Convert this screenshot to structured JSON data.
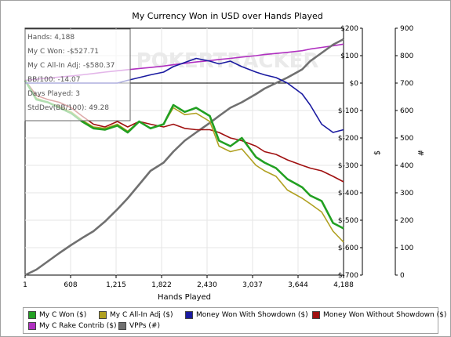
{
  "chart_data": {
    "type": "line",
    "title": "My Currency Won in USD over Hands Played",
    "xlabel": "Hands Played",
    "ylabel_left": "$",
    "ylabel_right": "#",
    "xlim": [
      1,
      4188
    ],
    "ylim_left": [
      -700,
      200
    ],
    "ylim_right": [
      0,
      900
    ],
    "x_ticks": [
      "1",
      "608",
      "1,215",
      "1,822",
      "2,430",
      "3,037",
      "3,644",
      "4,188"
    ],
    "y_ticks_left": [
      "$200",
      "$100",
      "$0",
      "$-100",
      "$-200",
      "$-300",
      "$-400",
      "$-500",
      "$-600",
      "$-700"
    ],
    "y_ticks_right": [
      "900",
      "800",
      "700",
      "600",
      "500",
      "400",
      "300",
      "200",
      "100",
      "0"
    ],
    "grid": true,
    "legend_position": "bottom",
    "x": [
      1,
      150,
      300,
      450,
      608,
      750,
      900,
      1050,
      1215,
      1350,
      1500,
      1650,
      1822,
      1950,
      2100,
      2250,
      2430,
      2550,
      2700,
      2850,
      3037,
      3150,
      3300,
      3450,
      3644,
      3750,
      3900,
      4050,
      4188
    ],
    "series": [
      {
        "name": "My C Won ($)",
        "color": "#22a022",
        "axis": "left",
        "values": [
          10,
          -60,
          -70,
          -90,
          -110,
          -140,
          -165,
          -170,
          -155,
          -180,
          -140,
          -165,
          -150,
          -80,
          -105,
          -90,
          -120,
          -210,
          -230,
          -200,
          -270,
          -290,
          -310,
          -350,
          -380,
          -410,
          -430,
          -510,
          -530
        ]
      },
      {
        "name": "My C All-In Adj ($)",
        "color": "#b0a020",
        "axis": "left",
        "values": [
          10,
          -55,
          -70,
          -85,
          -105,
          -135,
          -160,
          -165,
          -150,
          -175,
          -140,
          -165,
          -150,
          -90,
          -115,
          -110,
          -140,
          -230,
          -250,
          -240,
          -300,
          -320,
          -340,
          -390,
          -420,
          -440,
          -470,
          -540,
          -580
        ]
      },
      {
        "name": "Money Won With Showdown ($)",
        "color": "#1a1aa0",
        "axis": "left",
        "values": [
          0,
          0,
          0,
          0,
          0,
          0,
          0,
          0,
          0,
          10,
          20,
          30,
          40,
          60,
          75,
          90,
          80,
          70,
          80,
          60,
          40,
          30,
          20,
          0,
          -40,
          -80,
          -150,
          -180,
          -170
        ]
      },
      {
        "name": "Money Won Without Showdown ($)",
        "color": "#a01010",
        "axis": "left",
        "values": [
          10,
          -45,
          -60,
          -70,
          -90,
          -120,
          -150,
          -160,
          -140,
          -160,
          -140,
          -150,
          -160,
          -150,
          -165,
          -170,
          -170,
          -180,
          -200,
          -210,
          -230,
          -250,
          -260,
          -280,
          -300,
          -310,
          -320,
          -340,
          -360
        ]
      },
      {
        "name": "My C Rake Contrib ($)",
        "color": "#b030c0",
        "axis": "left",
        "values": [
          10,
          14,
          18,
          22,
          26,
          30,
          35,
          40,
          45,
          49,
          53,
          57,
          62,
          67,
          72,
          77,
          82,
          86,
          90,
          95,
          100,
          104,
          108,
          112,
          118,
          124,
          130,
          136,
          142
        ]
      },
      {
        "name": "VPPs (#)",
        "color": "#707070",
        "axis": "right",
        "values": [
          0,
          20,
          50,
          80,
          110,
          135,
          160,
          195,
          240,
          280,
          330,
          380,
          410,
          450,
          490,
          520,
          555,
          580,
          610,
          630,
          660,
          680,
          700,
          720,
          750,
          780,
          810,
          840,
          860
        ]
      }
    ]
  },
  "info_panel": {
    "rows": [
      "Hands: 4,188",
      "My C Won: -$527.71",
      "My C All-In Adj: -$580.37",
      "BB/100: -14.07",
      "Days Played: 3",
      "StdDev(BB/100): 49.28"
    ]
  },
  "watermark": "POKERTRACKER"
}
